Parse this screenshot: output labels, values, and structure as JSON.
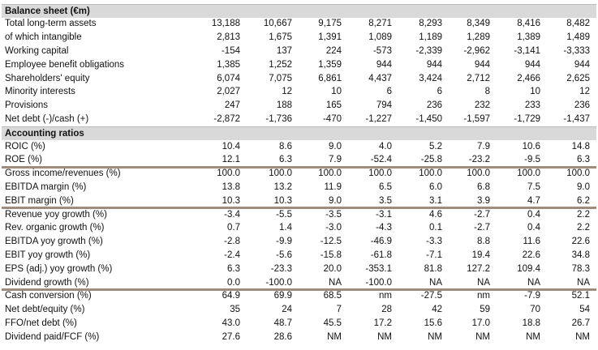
{
  "sections": [
    {
      "title": "Balance sheet (€m)",
      "rows": [
        {
          "label": "Total long-term assets",
          "values": [
            "13,188",
            "10,667",
            "9,175",
            "8,271",
            "8,293",
            "8,349",
            "8,416",
            "8,482"
          ]
        },
        {
          "label": "of which intangible",
          "values": [
            "2,813",
            "1,675",
            "1,391",
            "1,089",
            "1,189",
            "1,289",
            "1,389",
            "1,489"
          ]
        },
        {
          "label": "Working capital",
          "values": [
            "-154",
            "137",
            "224",
            "-573",
            "-2,339",
            "-2,962",
            "-3,141",
            "-3,333"
          ]
        },
        {
          "label": "Employee benefit obligations",
          "values": [
            "1,385",
            "1,252",
            "1,359",
            "944",
            "944",
            "944",
            "944",
            "944"
          ]
        },
        {
          "label": "Shareholders' equity",
          "values": [
            "6,074",
            "7,075",
            "6,861",
            "4,437",
            "3,424",
            "2,712",
            "2,466",
            "2,625"
          ]
        },
        {
          "label": "Minority interests",
          "values": [
            "2,027",
            "12",
            "10",
            "6",
            "6",
            "8",
            "10",
            "12"
          ]
        },
        {
          "label": "Provisions",
          "values": [
            "247",
            "188",
            "165",
            "794",
            "236",
            "232",
            "233",
            "236"
          ]
        },
        {
          "label": "Net debt (-)/cash (+)",
          "values": [
            "-2,872",
            "-1,736",
            "-470",
            "-1,227",
            "-1,450",
            "-1,597",
            "-1,729",
            "-1,437"
          ]
        }
      ]
    },
    {
      "title": "Accounting ratios",
      "rows": [
        {
          "label": "ROIC (%)",
          "values": [
            "10.4",
            "8.6",
            "9.0",
            "4.0",
            "5.2",
            "7.9",
            "10.6",
            "14.8"
          ]
        },
        {
          "label": "ROE (%)",
          "values": [
            "12.1",
            "6.3",
            "7.9",
            "-52.4",
            "-25.8",
            "-23.2",
            "-9.5",
            "6.3"
          ]
        }
      ]
    },
    {
      "rows": [
        {
          "label": "Gross income/revenues (%)",
          "values": [
            "100.0",
            "100.0",
            "100.0",
            "100.0",
            "100.0",
            "100.0",
            "100.0",
            "100.0"
          ]
        },
        {
          "label": "EBITDA margin (%)",
          "values": [
            "13.8",
            "13.2",
            "11.9",
            "6.5",
            "6.0",
            "6.8",
            "7.5",
            "9.0"
          ]
        },
        {
          "label": "EBIT margin (%)",
          "values": [
            "10.3",
            "10.3",
            "9.0",
            "3.5",
            "3.1",
            "3.9",
            "4.7",
            "6.2"
          ]
        }
      ]
    },
    {
      "rows": [
        {
          "label": "Revenue yoy growth (%)",
          "values": [
            "-3.4",
            "-5.5",
            "-3.5",
            "-3.1",
            "4.6",
            "-2.7",
            "0.4",
            "2.2"
          ]
        },
        {
          "label": "Rev. organic growth (%)",
          "values": [
            "0.7",
            "1.4",
            "-3.0",
            "-4.3",
            "0.1",
            "-2.7",
            "0.4",
            "2.2"
          ]
        },
        {
          "label": "EBITDA yoy growth (%)",
          "values": [
            "-2.8",
            "-9.9",
            "-12.5",
            "-46.9",
            "-3.3",
            "8.8",
            "11.6",
            "22.6"
          ]
        },
        {
          "label": "EBIT yoy growth (%)",
          "values": [
            "-2.4",
            "-5.6",
            "-15.8",
            "-61.8",
            "-7.1",
            "19.4",
            "22.6",
            "34.8"
          ]
        },
        {
          "label": "EPS (adj.) yoy growth (%)",
          "values": [
            "6.3",
            "-23.3",
            "20.0",
            "-353.1",
            "81.8",
            "127.2",
            "109.4",
            "78.3"
          ]
        },
        {
          "label": "Dividend growth (%)",
          "values": [
            "0.0",
            "-100.0",
            "NA",
            "-100.0",
            "NA",
            "NA",
            "NA",
            "NA"
          ]
        }
      ]
    },
    {
      "rows": [
        {
          "label": "Cash conversion (%)",
          "values": [
            "64.9",
            "69.9",
            "68.5",
            "nm",
            "-27.5",
            "nm",
            "-7.9",
            "52.1"
          ]
        },
        {
          "label": "Net debt/equity (%)",
          "values": [
            "35",
            "24",
            "7",
            "28",
            "42",
            "59",
            "70",
            "54"
          ]
        },
        {
          "label": "FFO/net debt (%)",
          "values": [
            "43.0",
            "48.7",
            "45.5",
            "17.2",
            "15.6",
            "17.0",
            "18.8",
            "26.7"
          ]
        },
        {
          "label": "Dividend paid/FCF (%)",
          "values": [
            "27.6",
            "28.6",
            "NM",
            "NM",
            "NM",
            "NM",
            "NM",
            "NM"
          ]
        }
      ]
    }
  ]
}
